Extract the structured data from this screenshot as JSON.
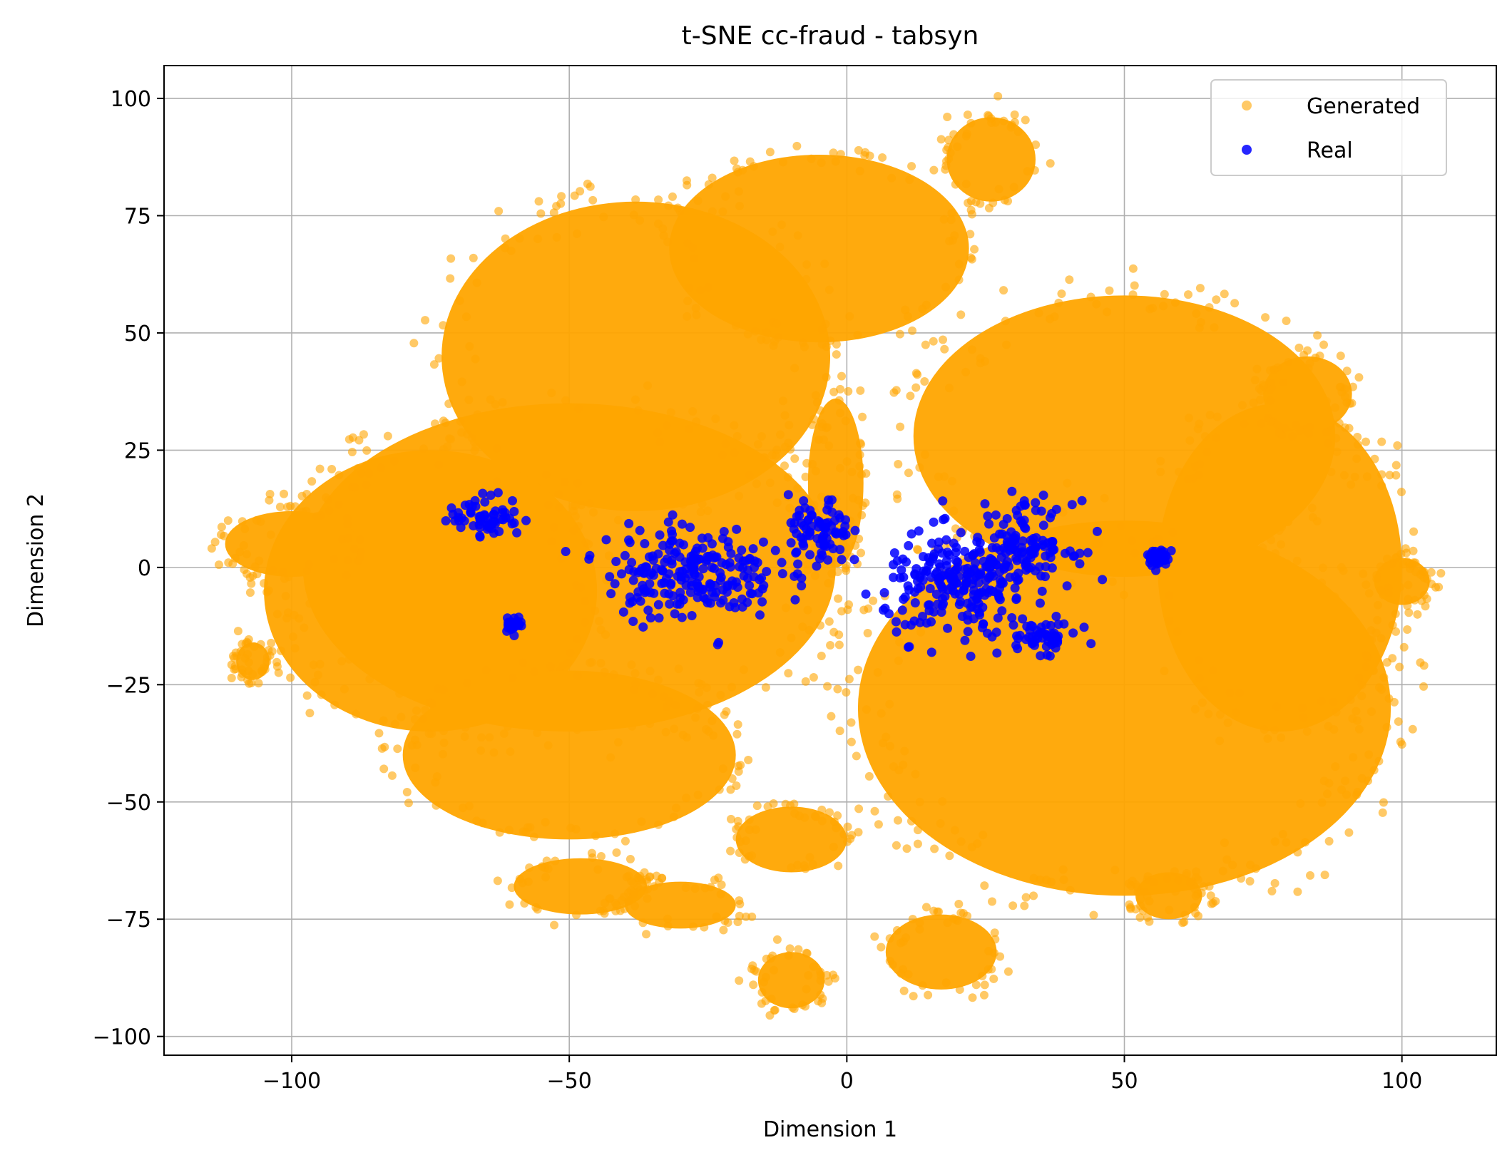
{
  "chart_data": {
    "type": "scatter",
    "title": "t-SNE cc-fraud - tabsyn",
    "xlabel": "Dimension 1",
    "ylabel": "Dimension 2",
    "xlim": [
      -123,
      117
    ],
    "ylim": [
      -104,
      107
    ],
    "xticks": [
      -100,
      -50,
      0,
      50,
      100
    ],
    "yticks": [
      -100,
      -75,
      -50,
      -25,
      0,
      25,
      50,
      75,
      100
    ],
    "xtick_labels": [
      "−100",
      "−50",
      "0",
      "50",
      "100"
    ],
    "ytick_labels": [
      "−100",
      "−75",
      "−50",
      "−25",
      "0",
      "25",
      "50",
      "75",
      "100"
    ],
    "grid": true,
    "legend_position": "top-right",
    "series": [
      {
        "name": "Generated",
        "color": "#FFA500",
        "clusters": [
          {
            "cx": -38,
            "cy": 45,
            "rx": 35,
            "ry": 33
          },
          {
            "cx": -50,
            "cy": 0,
            "rx": 48,
            "ry": 35
          },
          {
            "cx": -75,
            "cy": -5,
            "rx": 30,
            "ry": 30
          },
          {
            "cx": -100,
            "cy": 5,
            "rx": 12,
            "ry": 7
          },
          {
            "cx": -107,
            "cy": -20,
            "rx": 3,
            "ry": 4
          },
          {
            "cx": -50,
            "cy": -40,
            "rx": 30,
            "ry": 18
          },
          {
            "cx": -5,
            "cy": 68,
            "rx": 27,
            "ry": 20
          },
          {
            "cx": 50,
            "cy": 28,
            "rx": 38,
            "ry": 30
          },
          {
            "cx": 50,
            "cy": -30,
            "rx": 48,
            "ry": 40
          },
          {
            "cx": 78,
            "cy": 0,
            "rx": 22,
            "ry": 35
          },
          {
            "cx": 83,
            "cy": 37,
            "rx": 8,
            "ry": 8
          },
          {
            "cx": 100,
            "cy": -3,
            "rx": 5,
            "ry": 5
          },
          {
            "cx": 26,
            "cy": 87,
            "rx": 8,
            "ry": 9
          },
          {
            "cx": 17,
            "cy": -82,
            "rx": 10,
            "ry": 8
          },
          {
            "cx": -10,
            "cy": -88,
            "rx": 6,
            "ry": 6
          },
          {
            "cx": -48,
            "cy": -68,
            "rx": 12,
            "ry": 6
          },
          {
            "cx": -30,
            "cy": -72,
            "rx": 10,
            "ry": 5
          },
          {
            "cx": -10,
            "cy": -58,
            "rx": 10,
            "ry": 7
          },
          {
            "cx": -2,
            "cy": 18,
            "rx": 5,
            "ry": 18
          },
          {
            "cx": 58,
            "cy": -70,
            "rx": 6,
            "ry": 5
          }
        ]
      },
      {
        "name": "Real",
        "color": "#0000FF",
        "clusters": [
          {
            "cx": -65,
            "cy": 11,
            "rx": 6,
            "ry": 4
          },
          {
            "cx": -60,
            "cy": -12,
            "rx": 1.5,
            "ry": 1.5
          },
          {
            "cx": -28,
            "cy": -1,
            "rx": 14,
            "ry": 9
          },
          {
            "cx": -5,
            "cy": 7,
            "rx": 5,
            "ry": 7
          },
          {
            "cx": 20,
            "cy": -4,
            "rx": 12,
            "ry": 10
          },
          {
            "cx": 32,
            "cy": 5,
            "rx": 8,
            "ry": 8
          },
          {
            "cx": 35,
            "cy": -15,
            "rx": 6,
            "ry": 3
          },
          {
            "cx": 56,
            "cy": 2,
            "rx": 2.5,
            "ry": 2
          }
        ]
      }
    ]
  }
}
